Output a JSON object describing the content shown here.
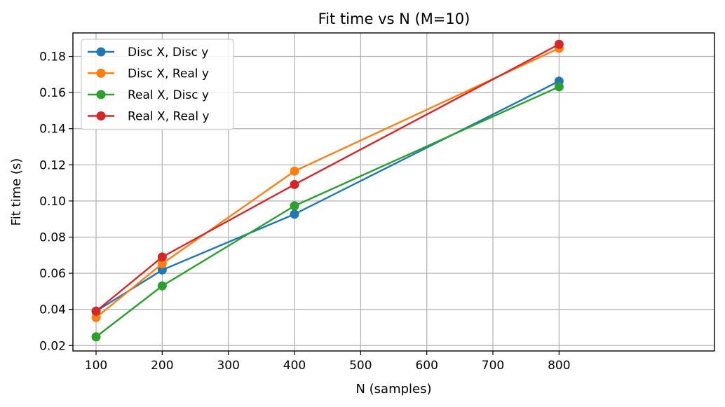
{
  "chart_data": {
    "type": "line",
    "title": "Fit time vs N (M=10)",
    "xlabel": "N (samples)",
    "ylabel": "Fit time (s)",
    "xlim": [
      65,
      1035
    ],
    "ylim": [
      0.017,
      0.193
    ],
    "xticks": [
      100,
      200,
      300,
      400,
      500,
      600,
      700,
      800
    ],
    "yticks": [
      0.02,
      0.04,
      0.06,
      0.08,
      0.1,
      0.12,
      0.14,
      0.16,
      0.18
    ],
    "ytick_labels": [
      "0.02",
      "0.04",
      "0.06",
      "0.08",
      "0.10",
      "0.12",
      "0.14",
      "0.16",
      "0.18"
    ],
    "grid": true,
    "legend_position": "top-left",
    "x": [
      100,
      200,
      400,
      800
    ],
    "series": [
      {
        "name": "Disc X, Disc y",
        "color": "#1f77b4",
        "values": [
          0.039,
          0.0618,
          0.0927,
          0.1663
        ]
      },
      {
        "name": "Disc X, Real y",
        "color": "#ff7f0e",
        "values": [
          0.0355,
          0.0653,
          0.1165,
          0.1845
        ]
      },
      {
        "name": "Real X, Disc y",
        "color": "#2ca02c",
        "values": [
          0.0248,
          0.053,
          0.0973,
          0.1632
        ]
      },
      {
        "name": "Real X, Real y",
        "color": "#d62728",
        "values": [
          0.039,
          0.069,
          0.1091,
          0.1867
        ]
      }
    ]
  }
}
